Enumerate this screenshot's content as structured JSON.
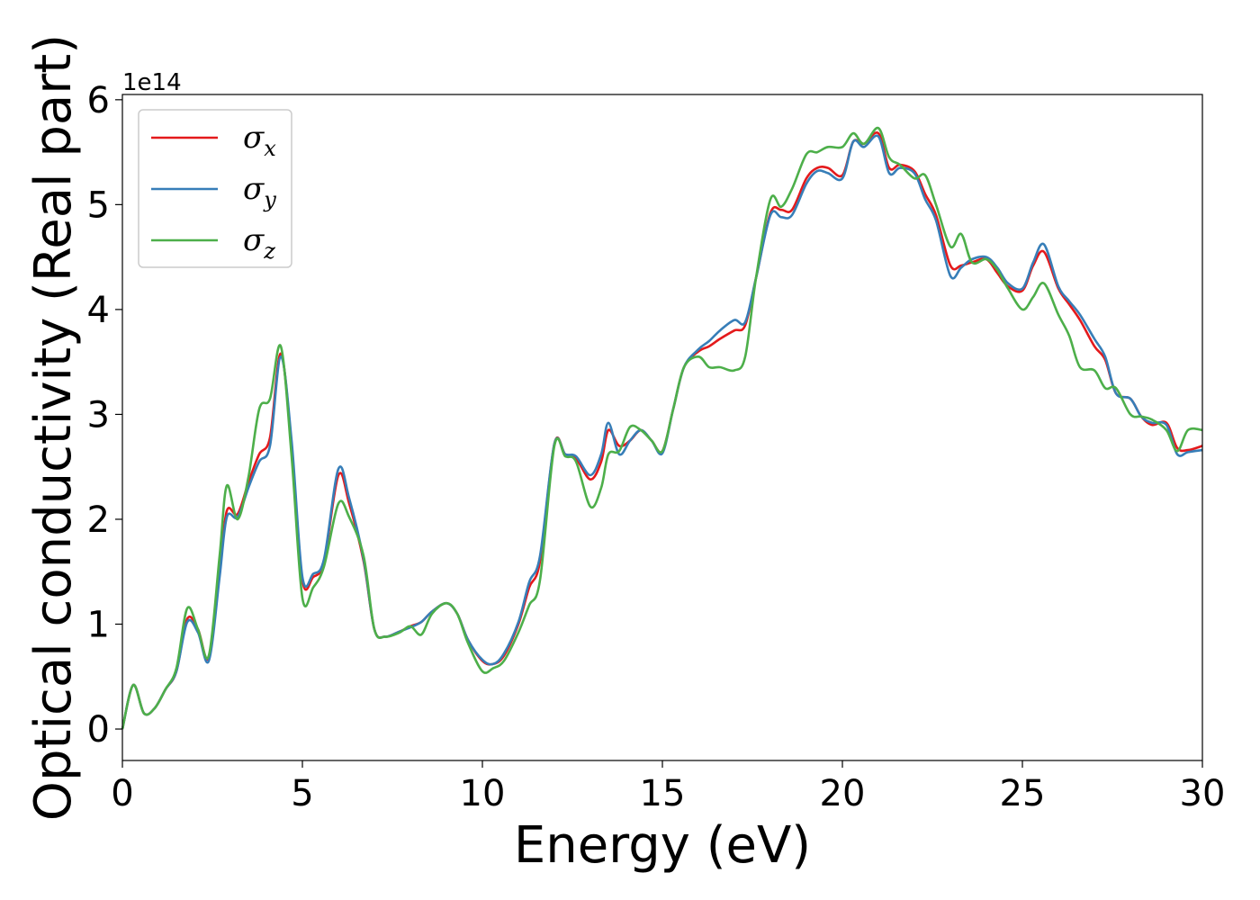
{
  "chart_data": {
    "type": "line",
    "title": "",
    "xlabel": "Energy (eV)",
    "ylabel": "Optical conductivity (Real part)",
    "y_offset_label": "1e14",
    "xlim": [
      0,
      30
    ],
    "ylim": [
      -0.3,
      6.05
    ],
    "xticks": [
      0,
      5,
      10,
      15,
      20,
      25,
      30
    ],
    "xtick_labels": [
      "0",
      "5",
      "10",
      "15",
      "20",
      "25",
      "30"
    ],
    "yticks": [
      0,
      1,
      2,
      3,
      4,
      5,
      6
    ],
    "ytick_labels": [
      "0",
      "1",
      "2",
      "3",
      "4",
      "5",
      "6"
    ],
    "grid": false,
    "legend_position": "top-left",
    "series": [
      {
        "name": "σx",
        "symbol": "σ",
        "subscript": "x",
        "color": "#e41a1c",
        "x": [
          0,
          0.3,
          0.6,
          0.9,
          1.2,
          1.5,
          1.8,
          2.1,
          2.4,
          2.7,
          2.9,
          3.2,
          3.5,
          3.8,
          4.1,
          4.4,
          4.7,
          5.0,
          5.3,
          5.6,
          6.0,
          6.3,
          6.7,
          7.0,
          7.3,
          7.7,
          8.0,
          8.3,
          8.6,
          9.0,
          9.3,
          9.6,
          10.0,
          10.3,
          10.6,
          11.0,
          11.3,
          11.6,
          12.0,
          12.3,
          12.6,
          13.0,
          13.3,
          13.5,
          13.8,
          14.1,
          14.4,
          14.7,
          15.0,
          15.3,
          15.6,
          16.0,
          16.3,
          16.6,
          17.0,
          17.3,
          17.6,
          18.0,
          18.3,
          18.6,
          19.0,
          19.3,
          19.6,
          20.0,
          20.3,
          20.6,
          21.0,
          21.3,
          21.6,
          22.0,
          22.3,
          22.6,
          23.0,
          23.3,
          23.6,
          24.0,
          24.3,
          24.6,
          25.0,
          25.3,
          25.6,
          26.0,
          26.3,
          26.6,
          27.0,
          27.3,
          27.6,
          28.0,
          28.3,
          28.6,
          29.0,
          29.3,
          29.6,
          30.0
        ],
        "y": [
          0.0,
          0.42,
          0.15,
          0.2,
          0.38,
          0.55,
          1.05,
          0.95,
          0.68,
          1.5,
          2.08,
          2.05,
          2.35,
          2.62,
          2.78,
          3.58,
          2.7,
          1.42,
          1.45,
          1.6,
          2.42,
          2.15,
          1.6,
          0.95,
          0.88,
          0.93,
          0.98,
          1.02,
          1.12,
          1.2,
          1.1,
          0.85,
          0.65,
          0.62,
          0.7,
          1.0,
          1.35,
          1.6,
          2.72,
          2.62,
          2.58,
          2.38,
          2.55,
          2.85,
          2.7,
          2.75,
          2.85,
          2.75,
          2.65,
          3.05,
          3.45,
          3.6,
          3.65,
          3.72,
          3.8,
          3.85,
          4.3,
          4.92,
          4.95,
          4.95,
          5.25,
          5.35,
          5.35,
          5.28,
          5.6,
          5.58,
          5.68,
          5.35,
          5.38,
          5.32,
          5.1,
          4.9,
          4.42,
          4.42,
          4.45,
          4.48,
          4.35,
          4.22,
          4.18,
          4.42,
          4.55,
          4.2,
          4.05,
          3.9,
          3.65,
          3.52,
          3.2,
          3.15,
          2.98,
          2.9,
          2.92,
          2.68,
          2.66,
          2.7
        ]
      },
      {
        "name": "σy",
        "symbol": "σ",
        "subscript": "y",
        "color": "#377eb8",
        "x": [
          0,
          0.3,
          0.6,
          0.9,
          1.2,
          1.5,
          1.8,
          2.1,
          2.4,
          2.7,
          2.9,
          3.2,
          3.5,
          3.8,
          4.1,
          4.4,
          4.7,
          5.0,
          5.3,
          5.6,
          6.0,
          6.3,
          6.7,
          7.0,
          7.3,
          7.7,
          8.0,
          8.3,
          8.6,
          9.0,
          9.3,
          9.6,
          10.0,
          10.3,
          10.6,
          11.0,
          11.3,
          11.6,
          12.0,
          12.3,
          12.6,
          13.0,
          13.3,
          13.5,
          13.8,
          14.1,
          14.4,
          14.7,
          15.0,
          15.3,
          15.6,
          16.0,
          16.3,
          16.6,
          17.0,
          17.3,
          17.6,
          18.0,
          18.3,
          18.6,
          19.0,
          19.3,
          19.6,
          20.0,
          20.3,
          20.6,
          21.0,
          21.3,
          21.6,
          22.0,
          22.3,
          22.6,
          23.0,
          23.3,
          23.6,
          24.0,
          24.3,
          24.6,
          25.0,
          25.3,
          25.6,
          26.0,
          26.3,
          26.6,
          27.0,
          27.3,
          27.6,
          28.0,
          28.3,
          28.6,
          29.0,
          29.3,
          29.6,
          30.0
        ],
        "y": [
          0.0,
          0.42,
          0.15,
          0.2,
          0.38,
          0.55,
          1.02,
          0.92,
          0.65,
          1.45,
          2.02,
          2.02,
          2.3,
          2.55,
          2.7,
          3.55,
          2.75,
          1.45,
          1.48,
          1.62,
          2.48,
          2.2,
          1.62,
          0.95,
          0.88,
          0.93,
          0.97,
          1.02,
          1.12,
          1.2,
          1.1,
          0.85,
          0.66,
          0.62,
          0.72,
          1.02,
          1.4,
          1.65,
          2.72,
          2.62,
          2.6,
          2.42,
          2.62,
          2.92,
          2.62,
          2.75,
          2.85,
          2.75,
          2.63,
          3.05,
          3.45,
          3.62,
          3.7,
          3.8,
          3.9,
          3.88,
          4.3,
          4.9,
          4.88,
          4.9,
          5.2,
          5.32,
          5.3,
          5.25,
          5.6,
          5.55,
          5.65,
          5.3,
          5.35,
          5.3,
          5.05,
          4.85,
          4.32,
          4.4,
          4.48,
          4.5,
          4.4,
          4.25,
          4.2,
          4.45,
          4.62,
          4.22,
          4.08,
          3.95,
          3.72,
          3.55,
          3.2,
          3.15,
          2.98,
          2.92,
          2.9,
          2.62,
          2.64,
          2.66
        ]
      },
      {
        "name": "σz",
        "symbol": "σ",
        "subscript": "z",
        "color": "#4daf4a",
        "x": [
          0,
          0.3,
          0.6,
          0.9,
          1.2,
          1.5,
          1.8,
          2.1,
          2.4,
          2.7,
          2.9,
          3.2,
          3.5,
          3.8,
          4.1,
          4.4,
          4.7,
          5.0,
          5.3,
          5.6,
          6.0,
          6.3,
          6.7,
          7.0,
          7.3,
          7.7,
          8.0,
          8.3,
          8.6,
          9.0,
          9.3,
          9.6,
          10.0,
          10.3,
          10.6,
          11.0,
          11.3,
          11.6,
          12.0,
          12.3,
          12.6,
          13.0,
          13.3,
          13.5,
          13.8,
          14.1,
          14.4,
          14.7,
          15.0,
          15.3,
          15.6,
          16.0,
          16.3,
          16.6,
          17.0,
          17.3,
          17.6,
          18.0,
          18.3,
          18.6,
          19.0,
          19.3,
          19.6,
          20.0,
          20.3,
          20.6,
          21.0,
          21.3,
          21.6,
          22.0,
          22.3,
          22.6,
          23.0,
          23.3,
          23.6,
          24.0,
          24.3,
          24.6,
          25.0,
          25.3,
          25.6,
          26.0,
          26.3,
          26.6,
          27.0,
          27.3,
          27.6,
          28.0,
          28.3,
          28.6,
          29.0,
          29.3,
          29.6,
          30.0
        ],
        "y": [
          0.0,
          0.42,
          0.15,
          0.2,
          0.38,
          0.58,
          1.15,
          0.95,
          0.7,
          1.65,
          2.32,
          2.0,
          2.4,
          3.05,
          3.15,
          3.65,
          2.6,
          1.25,
          1.35,
          1.55,
          2.15,
          2.02,
          1.65,
          0.95,
          0.88,
          0.92,
          0.98,
          0.9,
          1.1,
          1.2,
          1.1,
          0.82,
          0.55,
          0.58,
          0.65,
          0.92,
          1.18,
          1.42,
          2.7,
          2.6,
          2.55,
          2.12,
          2.3,
          2.62,
          2.65,
          2.88,
          2.85,
          2.75,
          2.65,
          3.05,
          3.45,
          3.55,
          3.45,
          3.45,
          3.42,
          3.55,
          4.3,
          5.05,
          4.98,
          5.15,
          5.48,
          5.5,
          5.55,
          5.55,
          5.68,
          5.58,
          5.73,
          5.45,
          5.38,
          5.25,
          5.28,
          5.0,
          4.6,
          4.72,
          4.45,
          4.48,
          4.38,
          4.2,
          4.0,
          4.12,
          4.25,
          3.95,
          3.75,
          3.45,
          3.42,
          3.25,
          3.25,
          3.0,
          2.98,
          2.95,
          2.85,
          2.65,
          2.85,
          2.85
        ]
      }
    ]
  }
}
